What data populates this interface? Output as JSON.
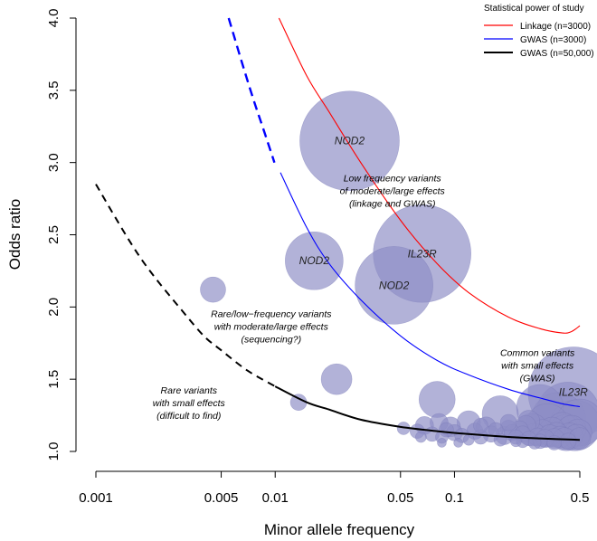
{
  "chart_data": {
    "type": "scatter",
    "xlabel": "Minor allele frequency",
    "ylabel": "Odds ratio",
    "x_scale": "log",
    "xlim": [
      0.001,
      0.5
    ],
    "ylim": [
      1.0,
      4.0
    ],
    "x_ticks": [
      {
        "value": 0.001,
        "label": "0.001"
      },
      {
        "value": 0.005,
        "label": "0.005"
      },
      {
        "value": 0.01,
        "label": "0.01"
      },
      {
        "value": 0.05,
        "label": "0.05"
      },
      {
        "value": 0.1,
        "label": "0.1"
      },
      {
        "value": 0.5,
        "label": "0.5"
      }
    ],
    "y_ticks": [
      {
        "value": 1.0,
        "label": "1.0"
      },
      {
        "value": 1.5,
        "label": "1.5"
      },
      {
        "value": 2.0,
        "label": "2.0"
      },
      {
        "value": 2.5,
        "label": "2.5"
      },
      {
        "value": 3.0,
        "label": "3.0"
      },
      {
        "value": 3.5,
        "label": "3.5"
      },
      {
        "value": 4.0,
        "label": "4.0"
      }
    ],
    "legend": {
      "title": "Statistical power of study",
      "position": "top-right",
      "entries": [
        {
          "label": "Linkage (n=3000)",
          "color": "#ff0000"
        },
        {
          "label": "GWAS (n=3000)",
          "color": "#0000ff"
        },
        {
          "label": "GWAS (n=50,000)",
          "color": "#000000"
        }
      ]
    },
    "curves": [
      {
        "color": "#ff0000",
        "style": "solid",
        "points": [
          [
            0.0105,
            4.0
          ],
          [
            0.015,
            3.6
          ],
          [
            0.02,
            3.35
          ],
          [
            0.03,
            3.0
          ],
          [
            0.05,
            2.6
          ],
          [
            0.08,
            2.3
          ],
          [
            0.12,
            2.1
          ],
          [
            0.2,
            1.93
          ],
          [
            0.3,
            1.85
          ],
          [
            0.4,
            1.82
          ],
          [
            0.45,
            1.83
          ],
          [
            0.5,
            1.87
          ]
        ]
      },
      {
        "color": "#0000ff",
        "style": "dashed",
        "points": [
          [
            0.0055,
            4.0
          ],
          [
            0.0065,
            3.7
          ],
          [
            0.0075,
            3.45
          ],
          [
            0.0085,
            3.25
          ],
          [
            0.0099,
            3.0
          ]
        ]
      },
      {
        "color": "#0000ff",
        "style": "solid",
        "points": [
          [
            0.0107,
            2.93
          ],
          [
            0.015,
            2.55
          ],
          [
            0.02,
            2.3
          ],
          [
            0.03,
            2.05
          ],
          [
            0.05,
            1.8
          ],
          [
            0.08,
            1.63
          ],
          [
            0.12,
            1.53
          ],
          [
            0.2,
            1.43
          ],
          [
            0.3,
            1.37
          ],
          [
            0.4,
            1.33
          ],
          [
            0.5,
            1.31
          ]
        ]
      },
      {
        "color": "#000000",
        "style": "dashed",
        "points": [
          [
            0.001,
            2.85
          ],
          [
            0.0015,
            2.48
          ],
          [
            0.002,
            2.25
          ],
          [
            0.003,
            1.98
          ],
          [
            0.004,
            1.8
          ],
          [
            0.005,
            1.7
          ],
          [
            0.007,
            1.56
          ],
          [
            0.01,
            1.45
          ]
        ]
      },
      {
        "color": "#000000",
        "style": "solid",
        "points": [
          [
            0.01,
            1.45
          ],
          [
            0.015,
            1.34
          ],
          [
            0.02,
            1.29
          ],
          [
            0.03,
            1.22
          ],
          [
            0.05,
            1.17
          ],
          [
            0.08,
            1.14
          ],
          [
            0.12,
            1.12
          ],
          [
            0.2,
            1.1
          ],
          [
            0.3,
            1.09
          ],
          [
            0.5,
            1.08
          ]
        ]
      }
    ],
    "bubble_color": "#8e8ec6",
    "bubbles": [
      {
        "x": 0.026,
        "y": 3.15,
        "size": 55,
        "label": "NOD2"
      },
      {
        "x": 0.066,
        "y": 2.37,
        "size": 54,
        "label": "IL23R"
      },
      {
        "x": 0.046,
        "y": 2.15,
        "size": 43,
        "label": "NOD2"
      },
      {
        "x": 0.0165,
        "y": 2.32,
        "size": 32,
        "label": "NOD2"
      },
      {
        "x": 0.46,
        "y": 1.41,
        "size": 50,
        "label": "IL23R"
      },
      {
        "x": 0.0045,
        "y": 2.12,
        "size": 14
      },
      {
        "x": 0.022,
        "y": 1.5,
        "size": 17
      },
      {
        "x": 0.0135,
        "y": 1.34,
        "size": 9
      },
      {
        "x": 0.08,
        "y": 1.36,
        "size": 20
      },
      {
        "x": 0.18,
        "y": 1.26,
        "size": 20
      },
      {
        "x": 0.3,
        "y": 1.3,
        "size": 26
      },
      {
        "x": 0.43,
        "y": 1.26,
        "size": 35
      },
      {
        "x": 0.38,
        "y": 1.22,
        "size": 30
      },
      {
        "x": 0.33,
        "y": 1.18,
        "size": 24
      },
      {
        "x": 0.47,
        "y": 1.18,
        "size": 28
      },
      {
        "x": 0.5,
        "y": 1.2,
        "size": 26
      },
      {
        "x": 0.27,
        "y": 1.15,
        "size": 18
      },
      {
        "x": 0.42,
        "y": 1.13,
        "size": 20
      },
      {
        "x": 0.12,
        "y": 1.2,
        "size": 13
      },
      {
        "x": 0.095,
        "y": 1.17,
        "size": 11
      },
      {
        "x": 0.1,
        "y": 1.13,
        "size": 9
      },
      {
        "x": 0.082,
        "y": 1.2,
        "size": 10
      },
      {
        "x": 0.068,
        "y": 1.18,
        "size": 10
      },
      {
        "x": 0.062,
        "y": 1.14,
        "size": 8
      },
      {
        "x": 0.075,
        "y": 1.12,
        "size": 8
      },
      {
        "x": 0.052,
        "y": 1.16,
        "size": 7
      },
      {
        "x": 0.085,
        "y": 1.1,
        "size": 7
      },
      {
        "x": 0.09,
        "y": 1.15,
        "size": 8
      },
      {
        "x": 0.11,
        "y": 1.11,
        "size": 8
      },
      {
        "x": 0.13,
        "y": 1.14,
        "size": 9
      },
      {
        "x": 0.14,
        "y": 1.1,
        "size": 8
      },
      {
        "x": 0.15,
        "y": 1.17,
        "size": 11
      },
      {
        "x": 0.16,
        "y": 1.12,
        "size": 9
      },
      {
        "x": 0.17,
        "y": 1.15,
        "size": 8
      },
      {
        "x": 0.19,
        "y": 1.11,
        "size": 10
      },
      {
        "x": 0.2,
        "y": 1.16,
        "size": 9
      },
      {
        "x": 0.21,
        "y": 1.13,
        "size": 9
      },
      {
        "x": 0.22,
        "y": 1.1,
        "size": 8
      },
      {
        "x": 0.23,
        "y": 1.15,
        "size": 10
      },
      {
        "x": 0.24,
        "y": 1.12,
        "size": 9
      },
      {
        "x": 0.25,
        "y": 1.18,
        "size": 11
      },
      {
        "x": 0.26,
        "y": 1.09,
        "size": 8
      },
      {
        "x": 0.28,
        "y": 1.12,
        "size": 12
      },
      {
        "x": 0.29,
        "y": 1.1,
        "size": 10
      },
      {
        "x": 0.31,
        "y": 1.14,
        "size": 13
      },
      {
        "x": 0.32,
        "y": 1.09,
        "size": 10
      },
      {
        "x": 0.34,
        "y": 1.11,
        "size": 12
      },
      {
        "x": 0.35,
        "y": 1.15,
        "size": 14
      },
      {
        "x": 0.36,
        "y": 1.09,
        "size": 11
      },
      {
        "x": 0.37,
        "y": 1.12,
        "size": 13
      },
      {
        "x": 0.39,
        "y": 1.1,
        "size": 12
      },
      {
        "x": 0.4,
        "y": 1.17,
        "size": 16
      },
      {
        "x": 0.41,
        "y": 1.09,
        "size": 12
      },
      {
        "x": 0.44,
        "y": 1.11,
        "size": 14
      },
      {
        "x": 0.45,
        "y": 1.15,
        "size": 16
      },
      {
        "x": 0.48,
        "y": 1.1,
        "size": 14
      },
      {
        "x": 0.49,
        "y": 1.13,
        "size": 15
      },
      {
        "x": 0.5,
        "y": 1.09,
        "size": 12
      },
      {
        "x": 0.12,
        "y": 1.08,
        "size": 6
      },
      {
        "x": 0.18,
        "y": 1.08,
        "size": 7
      },
      {
        "x": 0.24,
        "y": 1.07,
        "size": 7
      },
      {
        "x": 0.3,
        "y": 1.07,
        "size": 8
      },
      {
        "x": 0.36,
        "y": 1.06,
        "size": 8
      },
      {
        "x": 0.43,
        "y": 1.07,
        "size": 9
      },
      {
        "x": 0.14,
        "y": 1.18,
        "size": 8
      },
      {
        "x": 0.105,
        "y": 1.06,
        "size": 5
      },
      {
        "x": 0.085,
        "y": 1.06,
        "size": 5
      },
      {
        "x": 0.065,
        "y": 1.1,
        "size": 6
      },
      {
        "x": 0.2,
        "y": 1.2,
        "size": 9
      },
      {
        "x": 0.26,
        "y": 1.21,
        "size": 12
      },
      {
        "x": 0.22,
        "y": 1.07,
        "size": 6
      },
      {
        "x": 0.28,
        "y": 1.06,
        "size": 7
      }
    ],
    "annotations": [
      {
        "x": 0.045,
        "y": 2.87,
        "lines": [
          "Low frequency variants",
          "of moderate/large effects",
          "(linkage and GWAS)"
        ]
      },
      {
        "x": 0.0095,
        "y": 1.93,
        "lines": [
          "Rare/low−frequency variants",
          "with moderate/large effects",
          "(sequencing?)"
        ]
      },
      {
        "x": 0.29,
        "y": 1.66,
        "lines": [
          "Common variants",
          "with small effects",
          "(GWAS)"
        ]
      },
      {
        "x": 0.0033,
        "y": 1.4,
        "lines": [
          "Rare variants",
          "with small effects",
          "(difficult to find)"
        ]
      }
    ]
  }
}
